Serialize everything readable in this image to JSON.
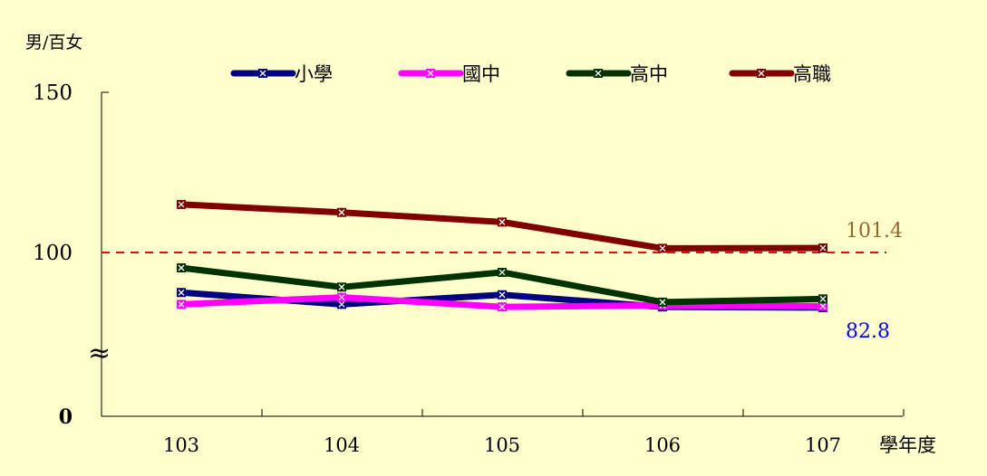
{
  "chart_data": {
    "type": "line",
    "ylabel": "男/百女",
    "xlabel": "學年度",
    "categories": [
      "103",
      "104",
      "105",
      "106",
      "107"
    ],
    "yticks": [
      {
        "label": "150",
        "value": 150,
        "bold": false
      },
      {
        "label": "100",
        "value": 100,
        "bold": false
      },
      {
        "label": "0",
        "value": 0,
        "bold": true
      }
    ],
    "axis_break_symbol": "≈",
    "axis_note": "broken y-axis: scale shown from about 50 to 150",
    "ylim": [
      50,
      150
    ],
    "reference_line": {
      "value": 100,
      "style": "dashed",
      "color": "#ff0000"
    },
    "legend_position": "top",
    "grid": false,
    "series": [
      {
        "name": "小學",
        "color": "#000080",
        "values": [
          87.5,
          83.8,
          86.8,
          83.0,
          82.8
        ]
      },
      {
        "name": "國中",
        "color": "#ff00ff",
        "values": [
          83.8,
          86.0,
          83.0,
          83.5,
          83.2
        ]
      },
      {
        "name": "高中",
        "color": "#003300",
        "values": [
          95.2,
          89.2,
          93.8,
          84.5,
          85.5
        ]
      },
      {
        "name": "高職",
        "color": "#800000",
        "values": [
          115.0,
          112.5,
          109.5,
          101.3,
          101.4
        ]
      }
    ],
    "annotations": [
      {
        "text": "101.4",
        "color": "#996633",
        "series": "高職",
        "category": "107"
      },
      {
        "text": "82.8",
        "color": "#0000ff",
        "series": "小學",
        "category": "107"
      }
    ]
  }
}
